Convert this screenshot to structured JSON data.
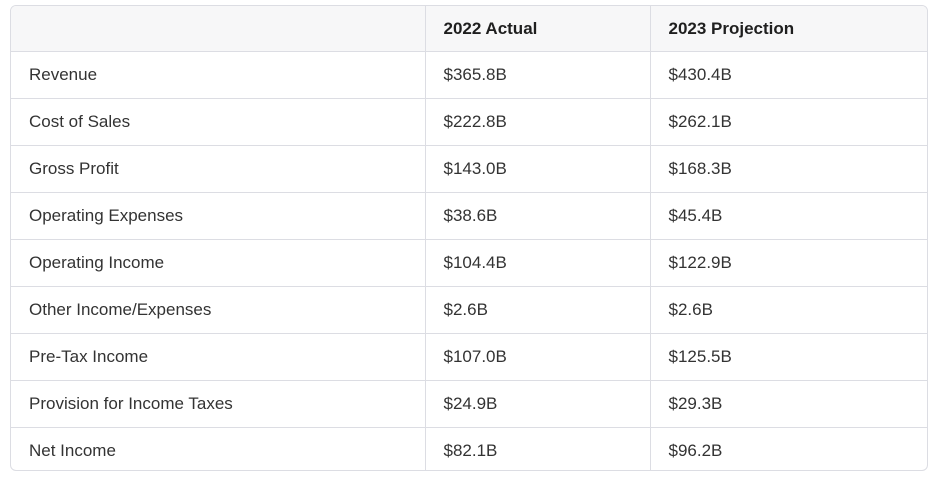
{
  "table": {
    "headers": [
      "",
      "2022 Actual",
      "2023 Projection"
    ],
    "rows": [
      [
        "Revenue",
        "$365.8B",
        "$430.4B"
      ],
      [
        "Cost of Sales",
        "$222.8B",
        "$262.1B"
      ],
      [
        "Gross Profit",
        "$143.0B",
        "$168.3B"
      ],
      [
        "Operating Expenses",
        "$38.6B",
        "$45.4B"
      ],
      [
        "Operating Income",
        "$104.4B",
        "$122.9B"
      ],
      [
        "Other Income/Expenses",
        "$2.6B",
        "$2.6B"
      ],
      [
        "Pre-Tax Income",
        "$107.0B",
        "$125.5B"
      ],
      [
        "Provision for Income Taxes",
        "$24.9B",
        "$29.3B"
      ],
      [
        "Net Income",
        "$82.1B",
        "$96.2B"
      ]
    ]
  }
}
